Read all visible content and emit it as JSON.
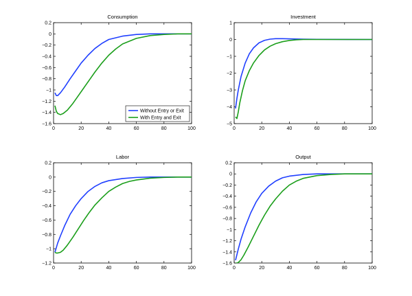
{
  "figure": {
    "colors": {
      "axis": "#000000",
      "background": "#ffffff"
    }
  },
  "chart_data": [
    {
      "type": "line",
      "title": "Consumption",
      "xlabel": "",
      "ylabel": "",
      "xlim": [
        0,
        100
      ],
      "ylim": [
        -1.6,
        0.2
      ],
      "xticks": [
        0,
        20,
        40,
        60,
        80,
        100
      ],
      "xtick_labels": [
        "0",
        "20",
        "40",
        "60",
        "80",
        "100"
      ],
      "yticks": [
        0.2,
        0,
        -0.2,
        -0.4,
        -0.6,
        -0.8,
        -1,
        -1.2,
        -1.4,
        -1.6
      ],
      "ytick_labels": [
        "0.2",
        "0",
        "−0.2",
        "−0.4",
        "−0.6",
        "−0.8",
        "−1",
        "−1.2",
        "−1.4",
        "−1.6"
      ],
      "grid": false,
      "legend": {
        "position": "bottom-right",
        "entries": [
          "Without Entry or Exit",
          "With Entry and Exit"
        ]
      },
      "series": [
        {
          "name": "Without Entry or Exit",
          "color": "#1f3fff",
          "x": [
            1,
            2,
            3,
            5,
            8,
            12,
            16,
            20,
            25,
            30,
            35,
            40,
            50,
            60,
            70,
            80,
            100
          ],
          "y": [
            -1.05,
            -1.1,
            -1.1,
            -1.05,
            -0.95,
            -0.8,
            -0.66,
            -0.52,
            -0.38,
            -0.26,
            -0.17,
            -0.1,
            -0.04,
            -0.01,
            0,
            0,
            0
          ]
        },
        {
          "name": "With Entry and Exit",
          "color": "#1a9e1a",
          "x": [
            1,
            2,
            3,
            5,
            7,
            10,
            14,
            18,
            22,
            26,
            30,
            35,
            40,
            45,
            50,
            60,
            70,
            80,
            90,
            100
          ],
          "y": [
            -1.28,
            -1.38,
            -1.42,
            -1.44,
            -1.42,
            -1.36,
            -1.24,
            -1.1,
            -0.96,
            -0.82,
            -0.68,
            -0.52,
            -0.38,
            -0.27,
            -0.18,
            -0.08,
            -0.03,
            -0.01,
            0,
            0
          ]
        }
      ]
    },
    {
      "type": "line",
      "title": "Investment",
      "xlabel": "",
      "ylabel": "",
      "xlim": [
        0,
        100
      ],
      "ylim": [
        -5,
        1
      ],
      "xticks": [
        0,
        20,
        40,
        60,
        80,
        100
      ],
      "xtick_labels": [
        "0",
        "20",
        "40",
        "60",
        "80",
        "100"
      ],
      "yticks": [
        1,
        0,
        -1,
        -2,
        -3,
        -4,
        -5
      ],
      "ytick_labels": [
        "1",
        "0",
        "−1",
        "−2",
        "−3",
        "−4",
        "−5"
      ],
      "grid": false,
      "series": [
        {
          "name": "Without Entry or Exit",
          "color": "#1f3fff",
          "x": [
            1,
            2,
            3,
            5,
            8,
            11,
            14,
            18,
            22,
            26,
            30,
            35,
            40,
            50,
            60,
            100
          ],
          "y": [
            -4.1,
            -3.5,
            -3.0,
            -2.2,
            -1.4,
            -0.85,
            -0.5,
            -0.2,
            -0.05,
            0.02,
            0.05,
            0.05,
            0.04,
            0.02,
            0.01,
            0
          ]
        },
        {
          "name": "With Entry and Exit",
          "color": "#1a9e1a",
          "x": [
            1,
            2,
            3,
            4,
            6,
            8,
            11,
            14,
            18,
            22,
            26,
            30,
            35,
            40,
            45,
            50,
            60,
            70,
            100
          ],
          "y": [
            -4.6,
            -4.7,
            -4.3,
            -3.8,
            -3.05,
            -2.45,
            -1.85,
            -1.4,
            -0.95,
            -0.62,
            -0.4,
            -0.25,
            -0.13,
            -0.06,
            -0.02,
            0,
            0,
            0,
            0
          ]
        }
      ]
    },
    {
      "type": "line",
      "title": "Labor",
      "xlabel": "",
      "ylabel": "",
      "xlim": [
        0,
        100
      ],
      "ylim": [
        -1.2,
        0.2
      ],
      "xticks": [
        0,
        20,
        40,
        60,
        80,
        100
      ],
      "xtick_labels": [
        "0",
        "20",
        "40",
        "60",
        "80",
        "100"
      ],
      "yticks": [
        0.2,
        0,
        -0.2,
        -0.4,
        -0.6,
        -0.8,
        -1,
        -1.2
      ],
      "ytick_labels": [
        "0.2",
        "0",
        "−0.2",
        "−0.4",
        "−0.6",
        "−0.8",
        "−1",
        "−1.2"
      ],
      "grid": false,
      "series": [
        {
          "name": "Without Entry or Exit",
          "color": "#1f3fff",
          "x": [
            1,
            3,
            5,
            8,
            12,
            16,
            20,
            25,
            30,
            35,
            40,
            50,
            60,
            70,
            80,
            100
          ],
          "y": [
            -1.05,
            -0.92,
            -0.82,
            -0.68,
            -0.52,
            -0.4,
            -0.3,
            -0.2,
            -0.13,
            -0.08,
            -0.05,
            -0.02,
            -0.005,
            0,
            0,
            0
          ]
        },
        {
          "name": "With Entry and Exit",
          "color": "#1a9e1a",
          "x": [
            1,
            2,
            3,
            5,
            7,
            10,
            14,
            18,
            22,
            26,
            30,
            35,
            40,
            45,
            50,
            55,
            60,
            70,
            80,
            90,
            100
          ],
          "y": [
            -1.05,
            -1.06,
            -1.06,
            -1.05,
            -1.02,
            -0.95,
            -0.84,
            -0.72,
            -0.6,
            -0.49,
            -0.39,
            -0.29,
            -0.2,
            -0.14,
            -0.09,
            -0.06,
            -0.04,
            -0.015,
            -0.005,
            0,
            0
          ]
        }
      ]
    },
    {
      "type": "line",
      "title": "Output",
      "xlabel": "",
      "ylabel": "",
      "xlim": [
        0,
        100
      ],
      "ylim": [
        -1.6,
        0.2
      ],
      "xticks": [
        0,
        20,
        40,
        60,
        80,
        100
      ],
      "xtick_labels": [
        "0",
        "20",
        "40",
        "60",
        "80",
        "100"
      ],
      "yticks": [
        0.2,
        0,
        -0.2,
        -0.4,
        -0.6,
        -0.8,
        -1,
        -1.2,
        -1.4,
        -1.6
      ],
      "ytick_labels": [
        "0.2",
        "0",
        "−0.2",
        "−0.4",
        "−0.6",
        "−0.8",
        "−1",
        "−1.2",
        "−1.4",
        "−1.6"
      ],
      "grid": false,
      "series": [
        {
          "name": "Without Entry or Exit",
          "color": "#1f3fff",
          "x": [
            1,
            3,
            5,
            8,
            12,
            16,
            20,
            25,
            30,
            35,
            40,
            50,
            60,
            70,
            100
          ],
          "y": [
            -1.55,
            -1.35,
            -1.17,
            -0.95,
            -0.7,
            -0.5,
            -0.35,
            -0.22,
            -0.13,
            -0.07,
            -0.04,
            -0.01,
            0,
            0,
            0
          ]
        },
        {
          "name": "With Entry and Exit",
          "color": "#1a9e1a",
          "x": [
            1,
            2,
            3,
            5,
            7,
            10,
            14,
            18,
            22,
            26,
            30,
            35,
            40,
            45,
            50,
            60,
            70,
            80,
            90,
            100
          ],
          "y": [
            -1.6,
            -1.6,
            -1.59,
            -1.54,
            -1.46,
            -1.32,
            -1.12,
            -0.92,
            -0.74,
            -0.58,
            -0.45,
            -0.31,
            -0.2,
            -0.13,
            -0.08,
            -0.03,
            -0.01,
            0,
            0,
            0
          ]
        }
      ]
    }
  ]
}
